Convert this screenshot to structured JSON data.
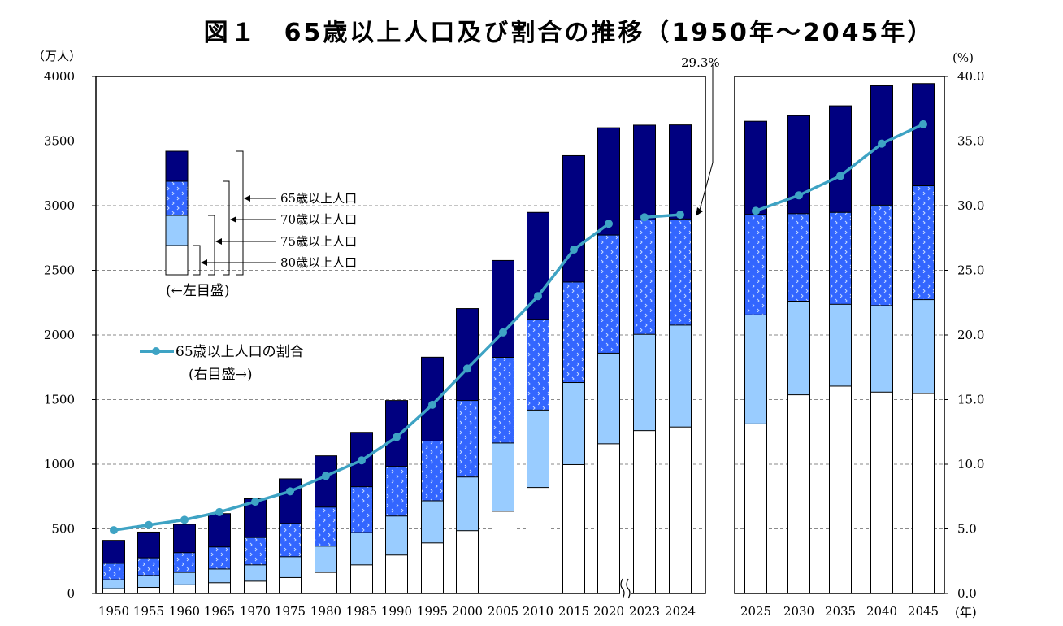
{
  "chart_data": {
    "type": "bar",
    "title": "図１　65歳以上人口及び割合の推移（1950年～2045年）",
    "left_unit": "（万人）",
    "right_unit": "(%)",
    "x_unit": "(年)",
    "y_left_range": [
      0,
      4000
    ],
    "y_left_ticks": [
      "0",
      "500",
      "1000",
      "1500",
      "2000",
      "2500",
      "3000",
      "3500",
      "4000"
    ],
    "y_right_range": [
      0,
      40
    ],
    "y_right_ticks": [
      "0.0",
      "5.0",
      "10.0",
      "15.0",
      "20.0",
      "25.0",
      "30.0",
      "35.0",
      "40.0"
    ],
    "grid": "horizontal dashed",
    "categories": [
      "1950",
      "1955",
      "1960",
      "1965",
      "1970",
      "1975",
      "1980",
      "1985",
      "1990",
      "1995",
      "2000",
      "2005",
      "2010",
      "2015",
      "2020",
      "2023",
      "2024",
      "2025",
      "2030",
      "2035",
      "2040",
      "2045"
    ],
    "series": [
      {
        "name": "80歳以上人口",
        "color": "#ffffff",
        "values": [
          37,
          47,
          67,
          83,
          95,
          123,
          163,
          221,
          297,
          391,
          486,
          636,
          820,
          997,
          1158,
          1260,
          1288,
          1312,
          1537,
          1604,
          1558,
          1547
        ]
      },
      {
        "name": "75歳以上人口",
        "color": "#99ccff",
        "values": [
          106,
          139,
          163,
          189,
          221,
          284,
          366,
          471,
          599,
          717,
          901,
          1164,
          1419,
          1632,
          1859,
          2005,
          2076,
          2155,
          2261,
          2237,
          2227,
          2273
        ]
      },
      {
        "name": "70歳以上人口",
        "color": "#3366ff",
        "values": [
          233,
          276,
          316,
          360,
          433,
          542,
          668,
          826,
          983,
          1180,
          1493,
          1827,
          2121,
          2409,
          2773,
          2891,
          2897,
          2932,
          2938,
          2948,
          3004,
          3154
        ]
      },
      {
        "name": "65歳以上人口",
        "color": "#000080",
        "values": [
          411,
          475,
          535,
          618,
          733,
          887,
          1065,
          1247,
          1493,
          1828,
          2204,
          2576,
          2948,
          3387,
          3603,
          3623,
          3625,
          3653,
          3696,
          3773,
          3928,
          3945
        ]
      }
    ],
    "ratio_series": {
      "name": "65歳以上人口の割合",
      "color": "#3ea3c4",
      "values": [
        4.9,
        5.3,
        5.7,
        6.3,
        7.1,
        7.9,
        9.1,
        10.3,
        12.1,
        14.6,
        17.4,
        20.2,
        23.0,
        26.6,
        28.6,
        29.1,
        29.3,
        29.6,
        30.8,
        32.3,
        34.8,
        36.3
      ]
    },
    "annotation": "29.3%",
    "legend": {
      "stack_labels": [
        "65歳以上人口",
        "70歳以上人口",
        "75歳以上人口",
        "80歳以上人口"
      ],
      "left_scale_note": "(←左目盛)",
      "line_label": "65歳以上人口の割合",
      "right_scale_note": "(右目盛→)"
    }
  }
}
